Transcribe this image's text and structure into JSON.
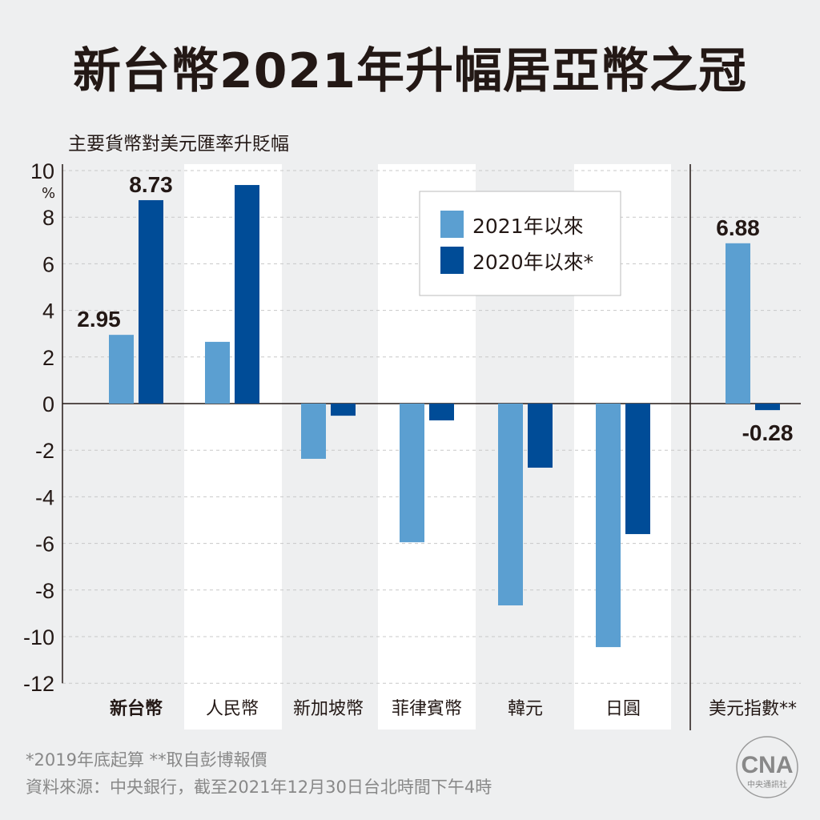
{
  "title": "新台幣2021年升幅居亞幣之冠",
  "subtitle": "主要貨幣對美元匯率升貶幅",
  "chart_data": {
    "type": "bar",
    "title": "新台幣2021年升幅居亞幣之冠",
    "ylabel": "主要貨幣對美元匯率升貶幅",
    "yunit": "%",
    "ylim": [
      -12,
      10
    ],
    "yticks": [
      10,
      8,
      6,
      4,
      2,
      0,
      -2,
      -4,
      -6,
      -8,
      -10,
      -12
    ],
    "grid": true,
    "legend_position": "top-center",
    "categories": [
      "新台幣",
      "人民幣",
      "新加坡幣",
      "菲律賓幣",
      "韓元",
      "日圓",
      "美元指數**"
    ],
    "highlight_category": "新台幣",
    "series": [
      {
        "name": "2021年以來",
        "color": "#5b9fd1",
        "values": [
          2.95,
          2.65,
          -2.37,
          -5.95,
          -8.66,
          -10.45,
          6.88
        ]
      },
      {
        "name": "2020年以來*",
        "color": "#004c97",
        "values": [
          8.73,
          9.38,
          -0.52,
          -0.72,
          -2.75,
          -5.6,
          -0.28
        ]
      }
    ],
    "data_labels": [
      {
        "category": "新台幣",
        "series": 0,
        "text": "2.95"
      },
      {
        "category": "新台幣",
        "series": 1,
        "text": "8.73"
      },
      {
        "category": "美元指數**",
        "series": 0,
        "text": "6.88"
      },
      {
        "category": "美元指數**",
        "series": 1,
        "text": "-0.28"
      }
    ]
  },
  "notes": {
    "footnote": "*2019年底起算  **取自彭博報價",
    "source": "資料來源：中央銀行，截至2021年12月30日台北時間下午4時"
  },
  "logo": {
    "text": "CNA",
    "subtext": "中央通訊社"
  }
}
